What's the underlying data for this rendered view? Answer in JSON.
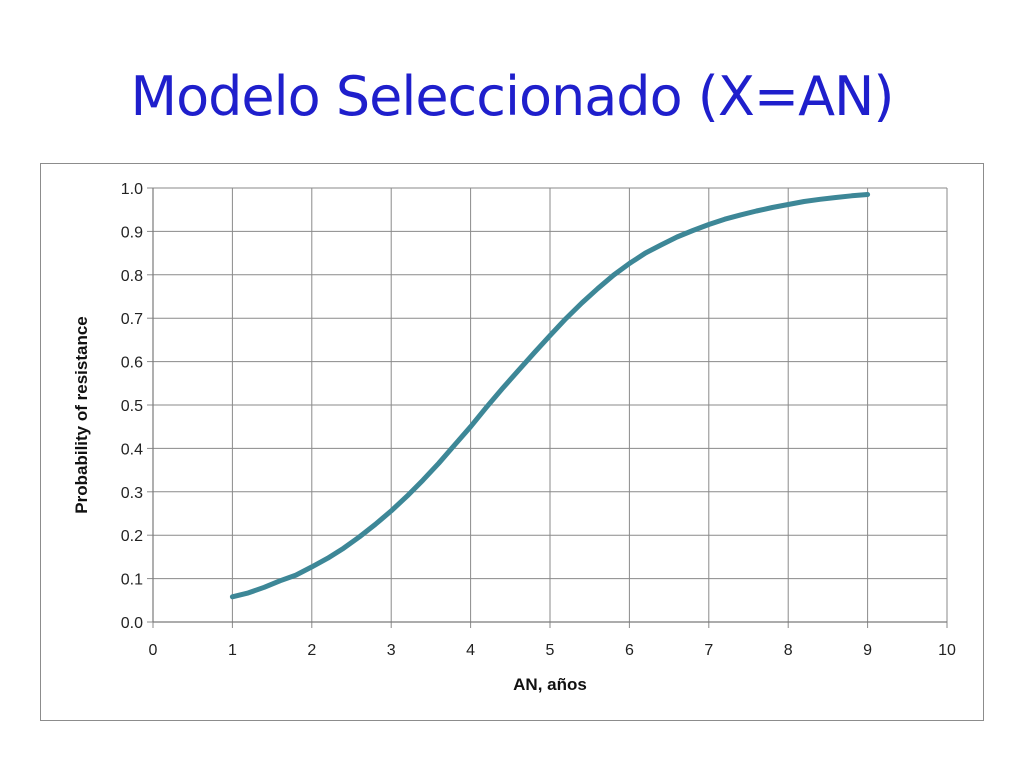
{
  "slide": {
    "title": "Modelo Seleccionado (X=AN)",
    "title_color": "#1f1fcc"
  },
  "chart_data": {
    "type": "line",
    "title": "",
    "xlabel": "AN, años",
    "ylabel": "Probability of resistance",
    "xlim": [
      0,
      10
    ],
    "ylim": [
      0,
      1.0
    ],
    "xticks": [
      "0",
      "1",
      "2",
      "3",
      "4",
      "5",
      "6",
      "7",
      "8",
      "9",
      "10"
    ],
    "yticks": [
      "0.0",
      "0.1",
      "0.2",
      "0.3",
      "0.4",
      "0.5",
      "0.6",
      "0.7",
      "0.8",
      "0.9",
      "1.0"
    ],
    "grid": true,
    "legend": "none",
    "series": [
      {
        "color": "#3d8797",
        "x": [
          1.0,
          1.2,
          1.4,
          1.6,
          1.8,
          2.0,
          2.2,
          2.4,
          2.6,
          2.8,
          3.0,
          3.2,
          3.4,
          3.6,
          3.8,
          4.0,
          4.2,
          4.4,
          4.6,
          4.8,
          5.0,
          5.2,
          5.4,
          5.6,
          5.8,
          6.0,
          6.2,
          6.4,
          6.6,
          6.8,
          7.0,
          7.2,
          7.4,
          7.6,
          7.8,
          8.0,
          8.2,
          8.4,
          8.6,
          8.8,
          9.0
        ],
        "y": [
          0.058,
          0.067,
          0.08,
          0.095,
          0.108,
          0.127,
          0.147,
          0.17,
          0.196,
          0.225,
          0.256,
          0.29,
          0.327,
          0.366,
          0.408,
          0.45,
          0.495,
          0.538,
          0.579,
          0.62,
          0.66,
          0.699,
          0.735,
          0.768,
          0.799,
          0.826,
          0.85,
          0.869,
          0.887,
          0.902,
          0.916,
          0.928,
          0.938,
          0.947,
          0.955,
          0.962,
          0.969,
          0.974,
          0.978,
          0.982,
          0.985
        ]
      }
    ]
  }
}
